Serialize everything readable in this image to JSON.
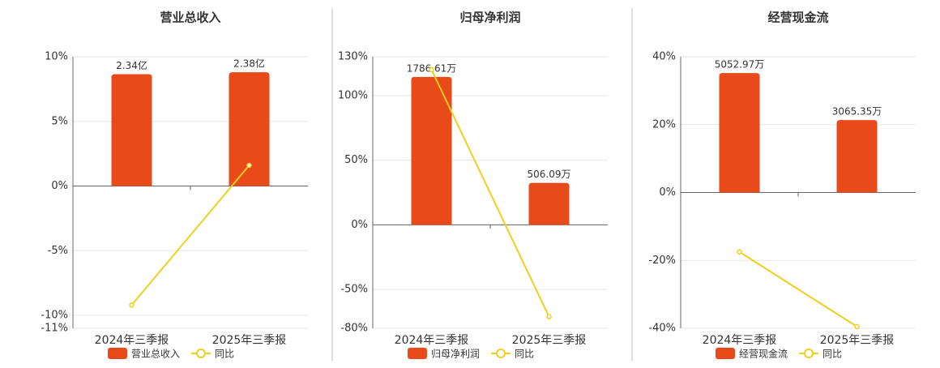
{
  "chart_data": [
    {
      "type": "bar",
      "title": "营业总收入",
      "categories": [
        "2024年三季报",
        "2025年三季报"
      ],
      "series": [
        {
          "name": "营业总收入",
          "color": "#e84a1a",
          "values": [
            2.34,
            2.38
          ],
          "value_labels": [
            "2.34亿",
            "2.38亿"
          ]
        },
        {
          "name": "同比",
          "type": "line",
          "color": "#f0cf1c",
          "values": [
            -9.2,
            1.6
          ]
        }
      ],
      "ylim": [
        -11,
        10
      ],
      "yticks": [
        {
          "value": 10,
          "label": "10%"
        },
        {
          "value": 5,
          "label": "5%"
        },
        {
          "value": 0,
          "label": "0%"
        },
        {
          "value": -5,
          "label": "-5%"
        },
        {
          "value": -10,
          "label": "-10%"
        },
        {
          "value": -11,
          "label": "-11%"
        }
      ],
      "grid": true
    },
    {
      "type": "bar",
      "title": "归母净利润",
      "categories": [
        "2024年三季报",
        "2025年三季报"
      ],
      "series": [
        {
          "name": "归母净利润",
          "color": "#e84a1a",
          "values": [
            1786.61,
            506.09
          ],
          "value_labels": [
            "1786.61万",
            "506.09万"
          ]
        },
        {
          "name": "同比",
          "type": "line",
          "color": "#f0cf1c",
          "values": [
            120,
            -71
          ]
        }
      ],
      "ylim": [
        -80,
        130
      ],
      "yticks": [
        {
          "value": 130,
          "label": "130%"
        },
        {
          "value": 100,
          "label": "100%"
        },
        {
          "value": 50,
          "label": "50%"
        },
        {
          "value": 0,
          "label": "0%"
        },
        {
          "value": -50,
          "label": "-50%"
        },
        {
          "value": -80,
          "label": "-80%"
        }
      ],
      "grid": true
    },
    {
      "type": "bar",
      "title": "经营现金流",
      "categories": [
        "2024年三季报",
        "2025年三季报"
      ],
      "series": [
        {
          "name": "经营现金流",
          "color": "#e84a1a",
          "values": [
            5052.97,
            3065.35
          ],
          "value_labels": [
            "5052.97万",
            "3065.35万"
          ]
        },
        {
          "name": "同比",
          "type": "line",
          "color": "#f0cf1c",
          "values": [
            -17.5,
            -39.5
          ]
        }
      ],
      "ylim": [
        -40,
        40
      ],
      "yticks": [
        {
          "value": 40,
          "label": "40%"
        },
        {
          "value": 20,
          "label": "20%"
        },
        {
          "value": 0,
          "label": "0%"
        },
        {
          "value": -20,
          "label": "-20%"
        },
        {
          "value": -40,
          "label": "-40%"
        }
      ],
      "grid": true
    }
  ]
}
